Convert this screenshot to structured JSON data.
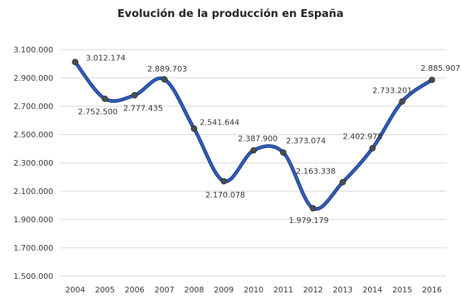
{
  "chart_data": {
    "type": "line",
    "title": "Evolución de la producción  en España",
    "xlabel": "",
    "ylabel": "",
    "categories": [
      "2004",
      "2005",
      "2006",
      "2007",
      "2008",
      "2009",
      "2010",
      "2011",
      "2012",
      "2013",
      "2014",
      "2015",
      "2016"
    ],
    "series": [
      {
        "values": [
          3012174,
          2752500,
          2777435,
          2889703,
          2541644,
          2170078,
          2387900,
          2373074,
          1979179,
          2163338,
          2402978,
          2733201,
          2885907
        ],
        "data_labels": [
          "3.012.174",
          "2.752.500",
          "2.777.435",
          "2.889.703",
          "2.541.644",
          "2.170.078",
          "2.387.900",
          "2.373.074",
          "1.979.179",
          "2.163.338",
          "2.402.978",
          "2.733.201",
          "2.885.907"
        ],
        "color": "#2f5fc6",
        "marker_color": "#4a4f55",
        "smooth": true
      }
    ],
    "ylim": [
      1500000,
      3100000
    ],
    "yticks": [
      1500000,
      1700000,
      1900000,
      2100000,
      2300000,
      2500000,
      2700000,
      2900000,
      3100000
    ],
    "ytick_labels": [
      "1.500.000",
      "1.700.000",
      "1.900.000",
      "2.100.000",
      "2.300.000",
      "2.500.000",
      "2.700.000",
      "2.900.000",
      "3.100.000"
    ],
    "grid": true,
    "legend": "none"
  }
}
